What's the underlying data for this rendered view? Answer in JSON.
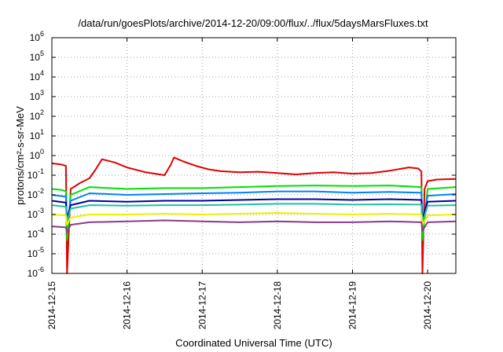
{
  "chart_data": {
    "type": "line",
    "title": "/data/run/goesPlots/archive/2014-12-20/09:00/flux/../flux/5daysMarsFluxes.txt",
    "xlabel": "Coordinated Universal Time (UTC)",
    "ylabel": "protons/cm²-s-sr-MeV",
    "y_scale": "log",
    "ylim": [
      1e-06,
      1000000.0
    ],
    "xlim": [
      "2014-12-15T00:00",
      "2014-12-20T09:00"
    ],
    "grid": true,
    "y_ticks": [
      {
        "base": "10",
        "exp": "-6"
      },
      {
        "base": "10",
        "exp": "-5"
      },
      {
        "base": "10",
        "exp": "-4"
      },
      {
        "base": "10",
        "exp": "-3"
      },
      {
        "base": "10",
        "exp": "-2"
      },
      {
        "base": "10",
        "exp": "-1"
      },
      {
        "base": "10",
        "exp": "0"
      },
      {
        "base": "10",
        "exp": "1"
      },
      {
        "base": "10",
        "exp": "2"
      },
      {
        "base": "10",
        "exp": "3"
      },
      {
        "base": "10",
        "exp": "4"
      },
      {
        "base": "10",
        "exp": "5"
      },
      {
        "base": "10",
        "exp": "6"
      }
    ],
    "x_ticks": [
      "2014-12-15",
      "2014-12-16",
      "2014-12-17",
      "2014-12-18",
      "2014-12-19",
      "2014-12-20"
    ],
    "series": [
      {
        "color": "#e00000",
        "points": [
          [
            "2014-12-15T00:00",
            0.4
          ],
          [
            "2014-12-15T03:00",
            0.35
          ],
          [
            "2014-12-15T04:30",
            0.3
          ],
          [
            "2014-12-15T04:50",
            1e-06
          ],
          [
            "2014-12-15T06:00",
            0.02
          ],
          [
            "2014-12-15T09:00",
            0.04
          ],
          [
            "2014-12-15T12:00",
            0.07
          ],
          [
            "2014-12-15T14:00",
            0.2
          ],
          [
            "2014-12-15T16:00",
            0.65
          ],
          [
            "2014-12-15T20:00",
            0.45
          ],
          [
            "2014-12-16T00:00",
            0.25
          ],
          [
            "2014-12-16T06:00",
            0.14
          ],
          [
            "2014-12-16T12:00",
            0.1
          ],
          [
            "2014-12-16T14:00",
            0.35
          ],
          [
            "2014-12-16T15:00",
            0.8
          ],
          [
            "2014-12-16T18:00",
            0.5
          ],
          [
            "2014-12-16T22:00",
            0.3
          ],
          [
            "2014-12-17T02:00",
            0.2
          ],
          [
            "2014-12-17T06:00",
            0.16
          ],
          [
            "2014-12-17T12:00",
            0.14
          ],
          [
            "2014-12-17T18:00",
            0.15
          ],
          [
            "2014-12-18T00:00",
            0.13
          ],
          [
            "2014-12-18T06:00",
            0.11
          ],
          [
            "2014-12-18T12:00",
            0.13
          ],
          [
            "2014-12-18T18:00",
            0.14
          ],
          [
            "2014-12-19T00:00",
            0.12
          ],
          [
            "2014-12-19T06:00",
            0.13
          ],
          [
            "2014-12-19T12:00",
            0.17
          ],
          [
            "2014-12-19T18:00",
            0.25
          ],
          [
            "2014-12-19T21:00",
            0.22
          ],
          [
            "2014-12-19T22:00",
            0.15
          ],
          [
            "2014-12-19T22:20",
            1e-06
          ],
          [
            "2014-12-19T23:00",
            0.02
          ],
          [
            "2014-12-20T00:00",
            0.05
          ],
          [
            "2014-12-20T03:00",
            0.06
          ],
          [
            "2014-12-20T09:00",
            0.065
          ]
        ]
      },
      {
        "color": "#00e000",
        "points": [
          [
            "2014-12-15T00:00",
            0.02
          ],
          [
            "2014-12-15T03:00",
            0.018
          ],
          [
            "2014-12-15T04:30",
            0.015
          ],
          [
            "2014-12-15T04:50",
            5e-05
          ],
          [
            "2014-12-15T06:00",
            0.01
          ],
          [
            "2014-12-15T12:00",
            0.025
          ],
          [
            "2014-12-16T00:00",
            0.02
          ],
          [
            "2014-12-16T12:00",
            0.022
          ],
          [
            "2014-12-17T00:00",
            0.022
          ],
          [
            "2014-12-17T12:00",
            0.025
          ],
          [
            "2014-12-18T00:00",
            0.028
          ],
          [
            "2014-12-18T12:00",
            0.03
          ],
          [
            "2014-12-19T00:00",
            0.028
          ],
          [
            "2014-12-19T12:00",
            0.03
          ],
          [
            "2014-12-19T22:00",
            0.025
          ],
          [
            "2014-12-19T22:20",
            5e-05
          ],
          [
            "2014-12-20T00:00",
            0.02
          ],
          [
            "2014-12-20T09:00",
            0.025
          ]
        ]
      },
      {
        "color": "#0080ff",
        "points": [
          [
            "2014-12-15T00:00",
            0.01
          ],
          [
            "2014-12-15T04:30",
            0.008
          ],
          [
            "2014-12-15T04:50",
            0.0003
          ],
          [
            "2014-12-15T06:00",
            0.005
          ],
          [
            "2014-12-15T12:00",
            0.012
          ],
          [
            "2014-12-16T00:00",
            0.01
          ],
          [
            "2014-12-16T12:00",
            0.011
          ],
          [
            "2014-12-17T00:00",
            0.012
          ],
          [
            "2014-12-17T12:00",
            0.013
          ],
          [
            "2014-12-18T00:00",
            0.015
          ],
          [
            "2014-12-18T12:00",
            0.015
          ],
          [
            "2014-12-19T00:00",
            0.013
          ],
          [
            "2014-12-19T12:00",
            0.014
          ],
          [
            "2014-12-19T22:00",
            0.013
          ],
          [
            "2014-12-19T22:20",
            0.0003
          ],
          [
            "2014-12-20T00:00",
            0.009
          ],
          [
            "2014-12-20T09:00",
            0.011
          ]
        ]
      },
      {
        "color": "#0000a0",
        "points": [
          [
            "2014-12-15T00:00",
            0.005
          ],
          [
            "2014-12-15T04:30",
            0.004
          ],
          [
            "2014-12-15T04:50",
            0.0006
          ],
          [
            "2014-12-15T06:00",
            0.003
          ],
          [
            "2014-12-15T12:00",
            0.005
          ],
          [
            "2014-12-16T00:00",
            0.0045
          ],
          [
            "2014-12-16T12:00",
            0.005
          ],
          [
            "2014-12-17T00:00",
            0.005
          ],
          [
            "2014-12-17T12:00",
            0.0055
          ],
          [
            "2014-12-18T00:00",
            0.006
          ],
          [
            "2014-12-18T12:00",
            0.006
          ],
          [
            "2014-12-19T00:00",
            0.0055
          ],
          [
            "2014-12-19T12:00",
            0.006
          ],
          [
            "2014-12-19T22:00",
            0.0055
          ],
          [
            "2014-12-19T22:20",
            0.0006
          ],
          [
            "2014-12-20T00:00",
            0.0045
          ],
          [
            "2014-12-20T09:00",
            0.005
          ]
        ]
      },
      {
        "color": "#20c0a0",
        "points": [
          [
            "2014-12-15T00:00",
            0.003
          ],
          [
            "2014-12-15T04:30",
            0.0025
          ],
          [
            "2014-12-15T04:50",
            0.0004
          ],
          [
            "2014-12-15T06:00",
            0.002
          ],
          [
            "2014-12-15T12:00",
            0.003
          ],
          [
            "2014-12-16T00:00",
            0.0028
          ],
          [
            "2014-12-16T12:00",
            0.003
          ],
          [
            "2014-12-17T00:00",
            0.003
          ],
          [
            "2014-12-17T12:00",
            0.0032
          ],
          [
            "2014-12-18T00:00",
            0.0035
          ],
          [
            "2014-12-18T12:00",
            0.0035
          ],
          [
            "2014-12-19T00:00",
            0.0032
          ],
          [
            "2014-12-19T12:00",
            0.0033
          ],
          [
            "2014-12-19T22:00",
            0.0032
          ],
          [
            "2014-12-19T22:20",
            0.0004
          ],
          [
            "2014-12-20T00:00",
            0.0028
          ],
          [
            "2014-12-20T09:00",
            0.003
          ]
        ]
      },
      {
        "color": "#f0f000",
        "points": [
          [
            "2014-12-15T00:00",
            0.001
          ],
          [
            "2014-12-15T04:30",
            0.0009
          ],
          [
            "2014-12-15T04:50",
            0.0003
          ],
          [
            "2014-12-15T06:00",
            0.0007
          ],
          [
            "2014-12-15T12:00",
            0.001
          ],
          [
            "2014-12-16T00:00",
            0.001
          ],
          [
            "2014-12-16T12:00",
            0.0011
          ],
          [
            "2014-12-17T00:00",
            0.001
          ],
          [
            "2014-12-17T12:00",
            0.0011
          ],
          [
            "2014-12-18T00:00",
            0.0012
          ],
          [
            "2014-12-18T12:00",
            0.0011
          ],
          [
            "2014-12-19T00:00",
            0.001
          ],
          [
            "2014-12-19T12:00",
            0.0011
          ],
          [
            "2014-12-19T22:00",
            0.001
          ],
          [
            "2014-12-19T22:20",
            0.0003
          ],
          [
            "2014-12-20T00:00",
            0.0009
          ],
          [
            "2014-12-20T09:00",
            0.001
          ]
        ]
      },
      {
        "color": "#8b3a8b",
        "points": [
          [
            "2014-12-15T00:00",
            0.00025
          ],
          [
            "2014-12-15T04:30",
            0.00022
          ],
          [
            "2014-12-15T04:50",
            0.00012
          ],
          [
            "2014-12-15T06:00",
            0.0003
          ],
          [
            "2014-12-15T12:00",
            0.0004
          ],
          [
            "2014-12-16T00:00",
            0.00045
          ],
          [
            "2014-12-16T12:00",
            0.0005
          ],
          [
            "2014-12-17T00:00",
            0.00045
          ],
          [
            "2014-12-17T12:00",
            0.0004
          ],
          [
            "2014-12-18T00:00",
            0.00045
          ],
          [
            "2014-12-18T12:00",
            0.0004
          ],
          [
            "2014-12-19T00:00",
            0.0004
          ],
          [
            "2014-12-19T12:00",
            0.00045
          ],
          [
            "2014-12-19T22:00",
            0.0004
          ],
          [
            "2014-12-19T22:20",
            0.00015
          ],
          [
            "2014-12-20T00:00",
            0.0004
          ],
          [
            "2014-12-20T09:00",
            0.00045
          ]
        ]
      }
    ]
  }
}
